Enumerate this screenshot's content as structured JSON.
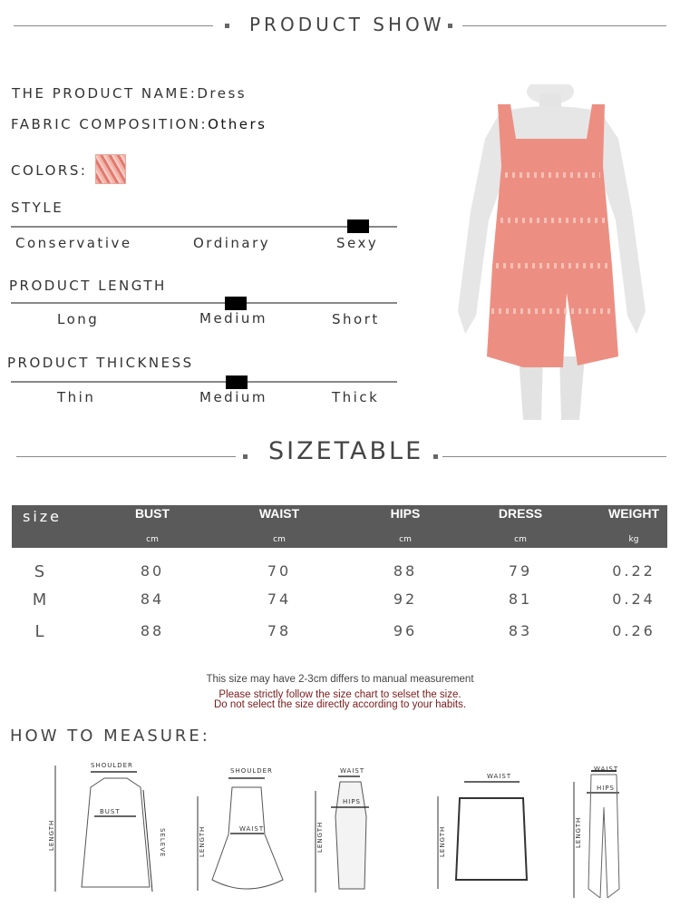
{
  "header": {
    "title": "PRODUCT SHOW"
  },
  "product": {
    "name_label": "THE PRODUCT NAME:",
    "name": "Dress",
    "fabric_label": "FABRIC COMPOSITION:",
    "fabric": "Others",
    "colors_label": "COLORS:",
    "swatch_color": "#e98a7f"
  },
  "attributes": [
    {
      "title": "STYLE",
      "options": [
        "Conservative",
        "Ordinary",
        "Sexy"
      ],
      "selected": "Sexy"
    },
    {
      "title": "PRODUCT LENGTH",
      "options": [
        "Long",
        "Medium",
        "Short"
      ],
      "selected": "Medium"
    },
    {
      "title": "PRODUCT THICKNESS",
      "options": [
        "Thin",
        "Medium",
        "Thick"
      ],
      "selected": "Medium"
    }
  ],
  "sizetable": {
    "title": "SIZETABLE",
    "header_color": "#5a5a5a",
    "columns": [
      {
        "label": "size",
        "unit": ""
      },
      {
        "label": "BUST",
        "unit": "cm"
      },
      {
        "label": "WAIST",
        "unit": "cm"
      },
      {
        "label": "HIPS",
        "unit": "cm"
      },
      {
        "label": "DRESS",
        "unit": "cm"
      },
      {
        "label": "WEIGHT",
        "unit": "kg"
      }
    ],
    "rows": [
      [
        "S",
        "80",
        "70",
        "88",
        "79",
        "0.22"
      ],
      [
        "M",
        "84",
        "74",
        "92",
        "81",
        "0.24"
      ],
      [
        "L",
        "88",
        "78",
        "96",
        "83",
        "0.26"
      ]
    ]
  },
  "notes": {
    "line1": "This size may have 2-3cm differs to manual measurement",
    "line2": "Please strictly follow the size chart to selset the size.",
    "line3": "Do not select the size directly according to your habits.",
    "warning_color": "#7a1a1a"
  },
  "measure": {
    "title": "HOW TO MEASURE:",
    "labels": {
      "shoulder": "SHOULDER",
      "bust": "BUST",
      "waist": "WAIST",
      "hips": "HIPS",
      "length": "LENGTH",
      "sleeve": "SELEVE"
    }
  }
}
